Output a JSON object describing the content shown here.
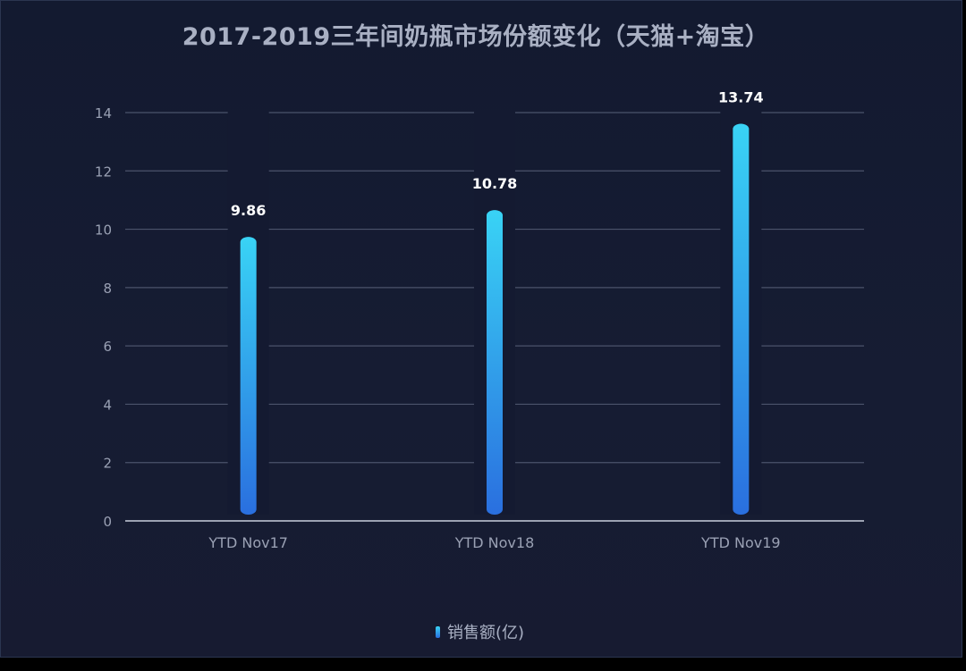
{
  "chart_data": {
    "type": "bar",
    "title": "2017-2019三年间奶瓶市场份额变化（天猫+淘宝）",
    "categories": [
      "YTD Nov17",
      "YTD Nov18",
      "YTD Nov19"
    ],
    "series": [
      {
        "name": "销售额(亿)",
        "values": [
          9.86,
          10.78,
          13.74
        ]
      }
    ],
    "value_labels": [
      "9.86",
      "10.78",
      "13.74"
    ],
    "ylim": [
      0,
      14
    ],
    "yticks": [
      0,
      2,
      4,
      6,
      8,
      10,
      12,
      14
    ],
    "grid": true,
    "legend_position": "bottom",
    "colors": {
      "bar_top": "#39d3f5",
      "bar_bottom": "#2a6fdf",
      "grid": "#4b536b",
      "axis": "#c9cfdc",
      "tick_text": "#9aa1b4",
      "value_text": "#ffffff"
    }
  }
}
